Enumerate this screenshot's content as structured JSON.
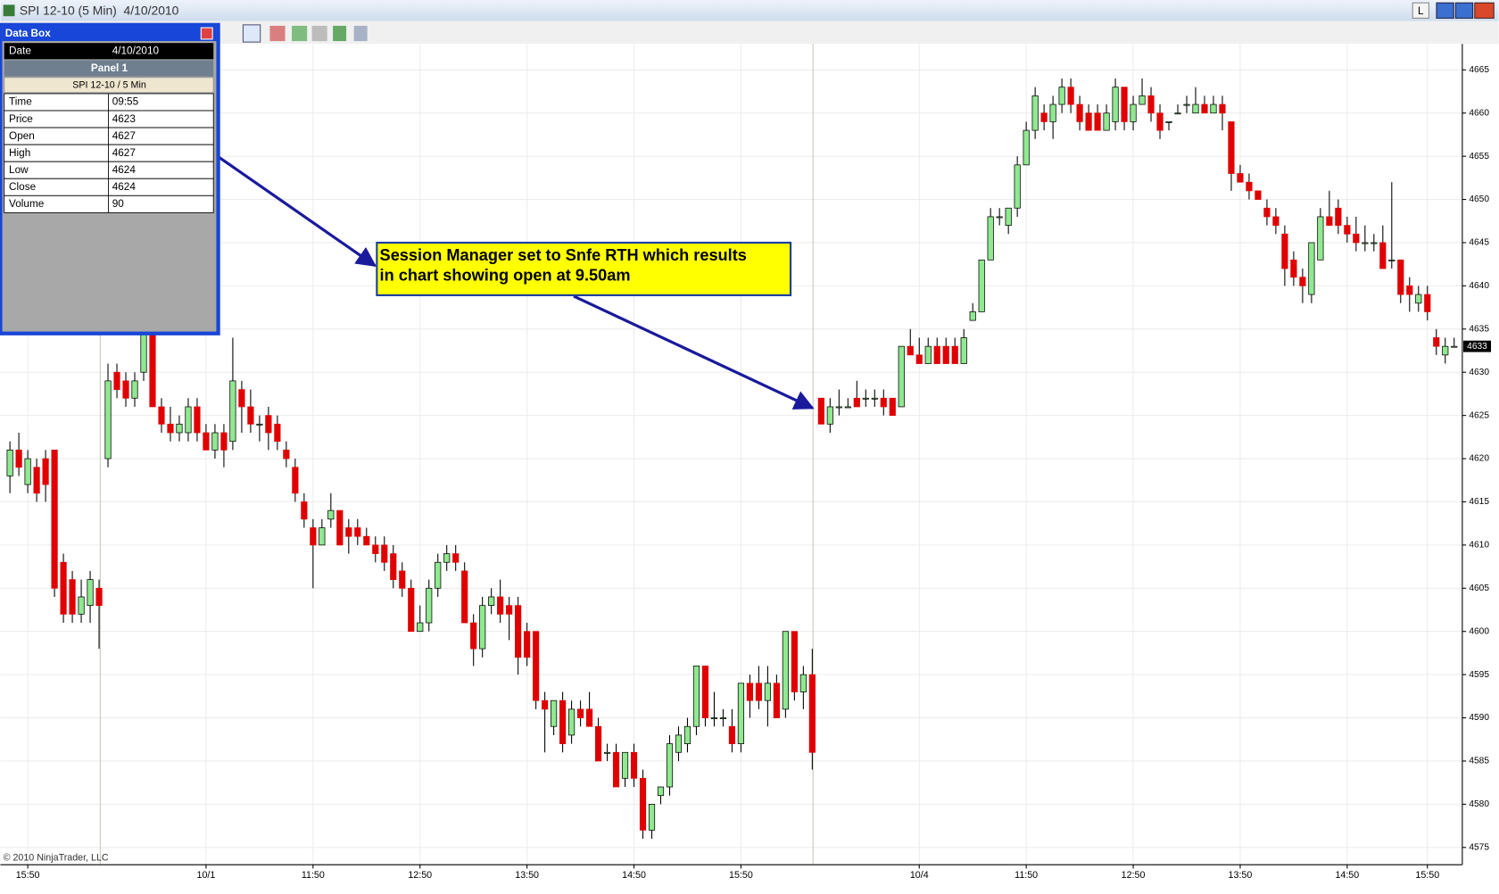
{
  "window": {
    "title": "SPI 12-10 (5 Min)  4/10/2010",
    "layout_button": "L"
  },
  "data_box": {
    "title": "Data Box",
    "date_label": "Date",
    "date": "4/10/2010",
    "panel": "Panel 1",
    "instrument": "SPI 12-10 / 5 Min",
    "rows": [
      [
        "Time",
        "09:55"
      ],
      [
        "Price",
        4623
      ],
      [
        "Open",
        4627
      ],
      [
        "High",
        4627
      ],
      [
        "Low",
        4624
      ],
      [
        "Close",
        4624
      ],
      [
        "Volume",
        90
      ]
    ]
  },
  "annotation": {
    "lines": [
      "Session Manager set to Snfe RTH which results",
      "in chart showing open at 9.50am"
    ]
  },
  "copyright": "© 2010 NinjaTrader, LLC",
  "chart_data": {
    "type": "candlestick",
    "up_color": "#90e890",
    "down_color": "#e00000",
    "grid": true,
    "ylim": [
      4573,
      4668
    ],
    "yticks": [
      4575,
      4580,
      4585,
      4590,
      4595,
      4600,
      4605,
      4610,
      4615,
      4620,
      4625,
      4630,
      4635,
      4640,
      4645,
      4650,
      4655,
      4660,
      4665
    ],
    "xticks": [
      {
        "value": 2,
        "label": "15:50"
      },
      {
        "value": 22,
        "label": "10/1"
      },
      {
        "value": 34,
        "label": "11:50"
      },
      {
        "value": 46,
        "label": "12:50"
      },
      {
        "value": 58,
        "label": "13:50"
      },
      {
        "value": 70,
        "label": "14:50"
      },
      {
        "value": 82,
        "label": "15:50"
      },
      {
        "value": 102,
        "label": "10/4"
      },
      {
        "value": 114,
        "label": "11:50"
      },
      {
        "value": 126,
        "label": "12:50"
      },
      {
        "value": 138,
        "label": "13:50"
      },
      {
        "value": 150,
        "label": "14:50"
      },
      {
        "value": 159,
        "label": "15:50"
      }
    ],
    "open": [
      4618,
      4621,
      4617,
      4619,
      4620,
      4621,
      4608,
      4606,
      4602,
      4603,
      4605,
      4620,
      4630,
      4629,
      4627,
      4630,
      4636,
      4626,
      4624,
      4623,
      4623,
      4626,
      4623,
      4621,
      4623,
      4622,
      4628,
      4626,
      4624,
      4625,
      4624,
      4621,
      4619,
      4615,
      4612,
      4610,
      4613,
      4614,
      4612,
      4612,
      4611,
      4610,
      4610,
      4609,
      4607,
      4605,
      4600,
      4601,
      4605,
      4608,
      4609,
      4607,
      4601,
      4598,
      4603,
      4604,
      4603,
      4603,
      4600,
      4600,
      4592,
      4589,
      4592,
      4588,
      4591,
      4591,
      4589,
      4586,
      4586,
      4583,
      4586,
      4583,
      4577,
      4581,
      4582,
      4586,
      4587,
      4589,
      4596,
      4590,
      4590,
      4589,
      4587,
      4594,
      4594,
      4592,
      4594,
      4591,
      4600,
      4593,
      4595,
      4627,
      4624,
      4626,
      4626,
      4627,
      4627,
      4627,
      4627,
      4627,
      4626,
      4633,
      4632,
      4631,
      4633,
      4633,
      4633,
      4631,
      4636,
      4637,
      4643,
      4648,
      4647,
      4649,
      4654,
      4658,
      4660,
      4659,
      4661,
      4663,
      4661,
      4660,
      4660,
      4658,
      4659,
      4663,
      4659,
      4661,
      4662,
      4660,
      4659,
      4660,
      4661,
      4660,
      4661,
      4660,
      4661,
      4659,
      4653,
      4652,
      4651,
      4649,
      4648,
      4646,
      4643,
      4641,
      4639,
      4643,
      4648,
      4649,
      4647,
      4646,
      4645,
      4645,
      4645,
      4643,
      4643,
      4640,
      4638,
      4639,
      4634,
      4632,
      4633
    ],
    "high": [
      4622,
      4623,
      4621,
      4620,
      4621,
      4621,
      4609,
      4607,
      4606,
      4607,
      4606,
      4631,
      4631,
      4630,
      4630,
      4636,
      4637,
      4627,
      4626,
      4625,
      4627,
      4627,
      4624,
      4624,
      4624,
      4634,
      4629,
      4628,
      4625,
      4626,
      4625,
      4622,
      4620,
      4616,
      4613,
      4613,
      4616,
      4614,
      4613,
      4613,
      4612,
      4611,
      4611,
      4610,
      4608,
      4606,
      4603,
      4606,
      4609,
      4610,
      4610,
      4608,
      4602,
      4604,
      4605,
      4606,
      4604,
      4604,
      4601,
      4600,
      4593,
      4592,
      4593,
      4592,
      4592,
      4593,
      4590,
      4587,
      4587,
      4586,
      4587,
      4584,
      4580,
      4582,
      4588,
      4589,
      4590,
      4596,
      4596,
      4593,
      4591,
      4591,
      4594,
      4595,
      4596,
      4596,
      4595,
      4600,
      4600,
      4596,
      4598,
      4627,
      4627,
      4628,
      4627,
      4629,
      4628,
      4628,
      4628,
      4627,
      4633,
      4635,
      4634,
      4634,
      4634,
      4634,
      4634,
      4635,
      4638,
      4643,
      4649,
      4649,
      4649,
      4655,
      4659,
      4663,
      4661,
      4662,
      4664,
      4664,
      4662,
      4661,
      4661,
      4661,
      4664,
      4663,
      4662,
      4664,
      4663,
      4661,
      4659,
      4661,
      4662,
      4663,
      4662,
      4662,
      4662,
      4659,
      4654,
      4653,
      4651,
      4650,
      4649,
      4647,
      4644,
      4642,
      4645,
      4649,
      4651,
      4650,
      4648,
      4648,
      4647,
      4646,
      4647,
      4652,
      4643,
      4641,
      4640,
      4640,
      4635,
      4634,
      4634
    ],
    "low": [
      4616,
      4618,
      4616,
      4615,
      4615,
      4604,
      4601,
      4601,
      4601,
      4601,
      4598,
      4619,
      4627,
      4626,
      4626,
      4629,
      4626,
      4623,
      4622,
      4622,
      4622,
      4622,
      4621,
      4620,
      4619,
      4621,
      4623,
      4623,
      4622,
      4621,
      4621,
      4619,
      4615,
      4612,
      4605,
      4610,
      4612,
      4610,
      4609,
      4610,
      4610,
      4608,
      4607,
      4605,
      4604,
      4600,
      4600,
      4600,
      4604,
      4607,
      4607,
      4601,
      4596,
      4597,
      4602,
      4601,
      4599,
      4595,
      4596,
      4591,
      4586,
      4588,
      4586,
      4587,
      4589,
      4589,
      4585,
      4585,
      4582,
      4582,
      4582,
      4576,
      4576,
      4580,
      4581,
      4585,
      4586,
      4588,
      4589,
      4589,
      4589,
      4586,
      4586,
      4590,
      4591,
      4589,
      4590,
      4590,
      4592,
      4591,
      4584,
      4624,
      4623,
      4625,
      4626,
      4626,
      4626,
      4626,
      4625,
      4625,
      4626,
      4632,
      4631,
      4631,
      4631,
      4631,
      4631,
      4631,
      4636,
      4637,
      4643,
      4647,
      4646,
      4648,
      4654,
      4657,
      4658,
      4657,
      4660,
      4660,
      4658,
      4658,
      4658,
      4658,
      4658,
      4658,
      4658,
      4661,
      4659,
      4657,
      4658,
      4660,
      4660,
      4660,
      4660,
      4660,
      4658,
      4651,
      4652,
      4650,
      4650,
      4647,
      4646,
      4640,
      4640,
      4638,
      4638,
      4643,
      4647,
      4646,
      4645,
      4644,
      4644,
      4644,
      4642,
      4642,
      4638,
      4637,
      4637,
      4636,
      4632,
      4631,
      4633
    ],
    "close": [
      4621,
      4619,
      4620,
      4616,
      4617,
      4605,
      4602,
      4602,
      4604,
      4606,
      4603,
      4629,
      4628,
      4627,
      4629,
      4635,
      4626,
      4624,
      4623,
      4624,
      4626,
      4623,
      4621,
      4623,
      4621,
      4629,
      4626,
      4624,
      4624,
      4623,
      4622,
      4620,
      4616,
      4613,
      4610,
      4612,
      4614,
      4610,
      4611,
      4611,
      4610,
      4609,
      4608,
      4606,
      4605,
      4600,
      4601,
      4605,
      4608,
      4609,
      4608,
      4601,
      4598,
      4603,
      4604,
      4602,
      4602,
      4597,
      4597,
      4592,
      4591,
      4592,
      4587,
      4591,
      4590,
      4589,
      4585,
      4586,
      4582,
      4586,
      4583,
      4577,
      4580,
      4582,
      4587,
      4588,
      4589,
      4596,
      4590,
      4590,
      4590,
      4587,
      4594,
      4592,
      4592,
      4594,
      4590,
      4600,
      4593,
      4595,
      4586,
      4624,
      4626,
      4626,
      4626,
      4626,
      4627,
      4627,
      4626,
      4625,
      4633,
      4632,
      4631,
      4633,
      4631,
      4631,
      4631,
      4634,
      4637,
      4643,
      4648,
      4648,
      4649,
      4654,
      4658,
      4662,
      4659,
      4661,
      4663,
      4661,
      4659,
      4658,
      4658,
      4660,
      4663,
      4659,
      4661,
      4662,
      4660,
      4658,
      4659,
      4660,
      4661,
      4661,
      4660,
      4661,
      4660,
      4653,
      4652,
      4651,
      4650,
      4648,
      4647,
      4642,
      4641,
      4640,
      4645,
      4648,
      4647,
      4647,
      4646,
      4645,
      4645,
      4645,
      4642,
      4643,
      4639,
      4639,
      4639,
      4637,
      4633,
      4633,
      4633
    ]
  }
}
